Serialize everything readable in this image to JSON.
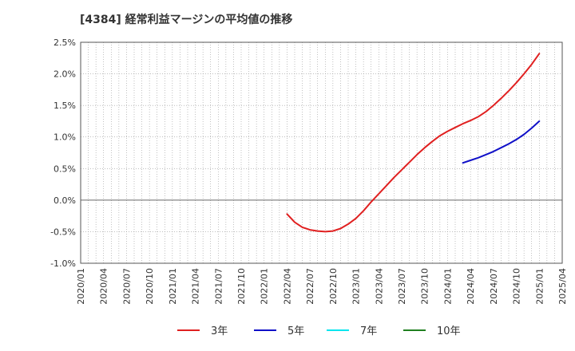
{
  "chart_data": {
    "type": "line",
    "title": "[4384]  経常利益マージンの平均値の推移",
    "xlabel": "",
    "ylabel": "",
    "ylim": [
      -1.0,
      2.5
    ],
    "yticks": [
      2.5,
      2.0,
      1.5,
      1.0,
      0.5,
      0.0,
      -0.5,
      -1.0
    ],
    "ytick_labels": [
      "2.5%",
      "2.0%",
      "1.5%",
      "1.0%",
      "0.5%",
      "0.0%",
      "-0.5%",
      "-1.0%"
    ],
    "x_categories": [
      "2020/01",
      "2020/04",
      "2020/07",
      "2020/10",
      "2021/01",
      "2021/04",
      "2021/07",
      "2021/10",
      "2022/01",
      "2022/04",
      "2022/07",
      "2022/10",
      "2023/01",
      "2023/04",
      "2023/07",
      "2023/10",
      "2024/01",
      "2024/04",
      "2024/07",
      "2024/10",
      "2025/01",
      "2025/04"
    ],
    "series": [
      {
        "name": "3年",
        "color": "#e02020",
        "points": [
          [
            "2022/04",
            -0.22
          ],
          [
            "2022/05",
            -0.35
          ],
          [
            "2022/06",
            -0.43
          ],
          [
            "2022/07",
            -0.47
          ],
          [
            "2022/08",
            -0.49
          ],
          [
            "2022/09",
            -0.5
          ],
          [
            "2022/10",
            -0.49
          ],
          [
            "2022/11",
            -0.45
          ],
          [
            "2022/12",
            -0.38
          ],
          [
            "2023/01",
            -0.29
          ],
          [
            "2023/02",
            -0.17
          ],
          [
            "2023/03",
            -0.03
          ],
          [
            "2023/04",
            0.1
          ],
          [
            "2023/05",
            0.23
          ],
          [
            "2023/06",
            0.36
          ],
          [
            "2023/07",
            0.48
          ],
          [
            "2023/08",
            0.6
          ],
          [
            "2023/09",
            0.72
          ],
          [
            "2023/10",
            0.83
          ],
          [
            "2023/11",
            0.93
          ],
          [
            "2023/12",
            1.02
          ],
          [
            "2024/01",
            1.09
          ],
          [
            "2024/02",
            1.15
          ],
          [
            "2024/03",
            1.21
          ],
          [
            "2024/04",
            1.26
          ],
          [
            "2024/05",
            1.32
          ],
          [
            "2024/06",
            1.4
          ],
          [
            "2024/07",
            1.5
          ],
          [
            "2024/08",
            1.61
          ],
          [
            "2024/09",
            1.73
          ],
          [
            "2024/10",
            1.86
          ],
          [
            "2024/11",
            2.0
          ],
          [
            "2024/12",
            2.15
          ],
          [
            "2025/01",
            2.32
          ]
        ]
      },
      {
        "name": "5年",
        "color": "#1010c8",
        "points": [
          [
            "2024/03",
            0.59
          ],
          [
            "2024/04",
            0.63
          ],
          [
            "2024/05",
            0.67
          ],
          [
            "2024/06",
            0.72
          ],
          [
            "2024/07",
            0.77
          ],
          [
            "2024/08",
            0.83
          ],
          [
            "2024/09",
            0.89
          ],
          [
            "2024/10",
            0.96
          ],
          [
            "2024/11",
            1.04
          ],
          [
            "2024/12",
            1.14
          ],
          [
            "2025/01",
            1.25
          ]
        ]
      },
      {
        "name": "7年",
        "color": "#00e5ee",
        "points": []
      },
      {
        "name": "10年",
        "color": "#208020",
        "points": []
      }
    ]
  }
}
